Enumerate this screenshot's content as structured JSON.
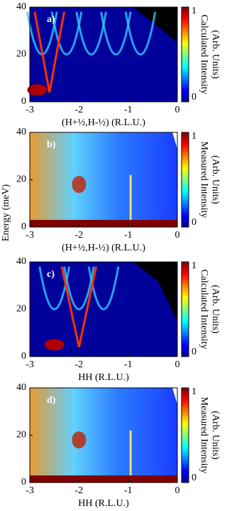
{
  "chart_data": [
    {
      "type": "heatmap",
      "panel_label": "a)",
      "xlabel": "(H+½,H-½) (R.L.U.)",
      "xlim": [
        -3,
        0
      ],
      "xticks": [
        -3,
        -2,
        -1,
        0
      ],
      "ylim": [
        0,
        40
      ],
      "yticks": [
        0,
        20,
        40
      ],
      "colorbar_label": [
        "Calculated Intensity",
        "(Arb. Units)"
      ],
      "clim": [
        0,
        1
      ],
      "cticks": [
        0,
        1
      ]
    },
    {
      "type": "heatmap",
      "panel_label": "b)",
      "xlabel": "(H+½,H-½) (R.L.U.)",
      "ylabel": "Energy (meV)",
      "xlim": [
        -3,
        0
      ],
      "xticks": [
        -3,
        -2,
        -1,
        0
      ],
      "ylim": [
        0,
        40
      ],
      "yticks": [
        0,
        20,
        40
      ],
      "colorbar_label": [
        "Measured Intensity",
        "(Arb. Units)"
      ],
      "clim": [
        0,
        1
      ],
      "cticks": [
        0,
        1
      ]
    },
    {
      "type": "heatmap",
      "panel_label": "c)",
      "xlabel": "HH (R.L.U.)",
      "xlim": [
        -3,
        0
      ],
      "xticks": [
        -3,
        -2,
        -1,
        0
      ],
      "ylim": [
        0,
        40
      ],
      "yticks": [
        0,
        20,
        40
      ],
      "colorbar_label": [
        "Calculated Intensity",
        "(Arb. Units)"
      ],
      "clim": [
        0,
        1
      ],
      "cticks": [
        0,
        1
      ]
    },
    {
      "type": "heatmap",
      "panel_label": "d)",
      "xlabel": "HH (R.L.U.)",
      "xlim": [
        -3,
        0
      ],
      "xticks": [
        -3,
        -2,
        -1,
        0
      ],
      "ylim": [
        0,
        40
      ],
      "yticks": [
        0,
        20,
        40
      ],
      "colorbar_label": [
        "Measured Intensity",
        "(Arb. Units)"
      ],
      "clim": [
        0,
        1
      ],
      "cticks": [
        0,
        1
      ]
    }
  ]
}
